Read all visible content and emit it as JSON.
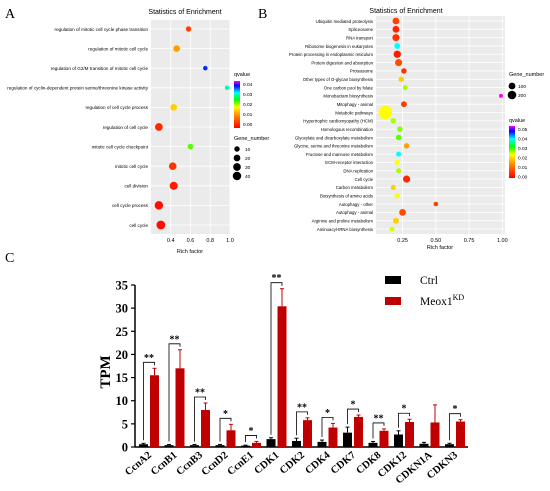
{
  "panels": {
    "a": "A",
    "b": "B",
    "c": "C"
  },
  "colors": {
    "ctrl": "#000000",
    "meox": "#c00000",
    "grad": [
      "#ff0000",
      "#ff8000",
      "#ffff00",
      "#00ff00",
      "#00ffff",
      "#0000ff",
      "#ff00ff"
    ]
  },
  "chart_data": [
    {
      "type": "scatter",
      "title": "Statistics of Enrichment",
      "xlabel": "Rich factor",
      "ylabel": "",
      "xlim": [
        0.2,
        1.0
      ],
      "xticks": [
        "0.4",
        "0.6",
        "0.8",
        "1.0"
      ],
      "xtick_values": [
        0.4,
        0.6,
        0.8,
        1.0
      ],
      "categories": [
        "regulation of mitotic cell cycle phase transition",
        "regulation of mitotic cell cycle",
        "regulation of G2/M transition of mitotic cell cycle",
        "regulation of cyclin-dependent protein serine/threonine kinase activity",
        "regulation of cell cycle process",
        "regulation of cell cycle",
        "mitotic cell cycle checkpoint",
        "mitotic cell cycle",
        "cell division",
        "cell cycle process",
        "cell cycle"
      ],
      "rich_factor": [
        0.58,
        0.46,
        0.75,
        0.97,
        0.43,
        0.28,
        0.6,
        0.42,
        0.43,
        0.28,
        0.3
      ],
      "qvalue": [
        0.005,
        0.012,
        0.035,
        0.028,
        0.015,
        0.003,
        0.022,
        0.004,
        0.002,
        0.001,
        0.001
      ],
      "gene_number": [
        10,
        20,
        5,
        5,
        20,
        30,
        12,
        30,
        35,
        40,
        45
      ],
      "legend_color": {
        "title": "qvalue",
        "ticks": [
          "0.04",
          "0.03",
          "0.02",
          "0.01",
          "0.00"
        ]
      },
      "legend_size": {
        "title": "Gene_number",
        "ticks": [
          "10",
          "20",
          "30",
          "40"
        ]
      }
    },
    {
      "type": "scatter",
      "title": "Statistics of Enrichment",
      "xlabel": "Rich factor",
      "ylabel": "",
      "xlim": [
        0.05,
        1.02
      ],
      "xticks": [
        "0.25",
        "0.50",
        "0.75",
        "1.00"
      ],
      "xtick_values": [
        0.25,
        0.5,
        0.75,
        1.0
      ],
      "categories": [
        "Ubiquitin mediated proteolysis",
        "Spliceosome",
        "RNA transport",
        "Ribosome biogenesis in eukaryotes",
        "Protein processing in endoplasmic reticulum",
        "Protein digestion and absorption",
        "Proteasome",
        "Other types of O-glycan biosynthesis",
        "One carbon pool by folate",
        "Monobactam biosynthesis",
        "Mitophagy - animal",
        "Metabolic pathways",
        "Hypertrophic cardiomyopathy (HCM)",
        "Homologous recombination",
        "Glyoxylate and dicarboxylate metabolism",
        "Glycine, serine and threonine metabolism",
        "Fructose and mannose metabolism",
        "ECM-receptor interaction",
        "DNA replication",
        "Cell cycle",
        "Carbon metabolism",
        "Biosynthesis of amino acids",
        "Autophagy - other",
        "Autophagy - animal",
        "Arginine and proline metabolism",
        "Aminoacyl-tRNA biosynthesis"
      ],
      "rich_factor": [
        0.2,
        0.2,
        0.2,
        0.21,
        0.21,
        0.22,
        0.26,
        0.24,
        0.27,
        0.99,
        0.26,
        0.12,
        0.18,
        0.23,
        0.22,
        0.28,
        0.22,
        0.21,
        0.22,
        0.28,
        0.18,
        0.21,
        0.5,
        0.25,
        0.2,
        0.17
      ],
      "qvalue": [
        0.005,
        0.003,
        0.004,
        0.03,
        0.002,
        0.006,
        0.004,
        0.015,
        0.02,
        0.04,
        0.005,
        0.018,
        0.02,
        0.021,
        0.022,
        0.012,
        0.03,
        0.018,
        0.02,
        0.003,
        0.015,
        0.018,
        0.005,
        0.006,
        0.015,
        0.019
      ],
      "gene_number": [
        40,
        40,
        45,
        25,
        50,
        45,
        20,
        20,
        15,
        5,
        25,
        250,
        20,
        20,
        20,
        18,
        15,
        15,
        15,
        45,
        15,
        20,
        10,
        40,
        25,
        15
      ],
      "legend_size": {
        "title": "Gene_number",
        "ticks": [
          "100",
          "200"
        ]
      },
      "legend_color": {
        "title": "qvalue",
        "ticks": [
          "0.05",
          "0.04",
          "0.03",
          "0.02",
          "0.01",
          "0.00"
        ]
      }
    },
    {
      "type": "bar",
      "title": "",
      "xlabel": "",
      "ylabel": "TPM",
      "ylim": [
        0,
        35
      ],
      "yticks": [
        "0",
        "5",
        "10",
        "15",
        "20",
        "25",
        "30",
        "35"
      ],
      "ytick_values": [
        0,
        5,
        10,
        15,
        20,
        25,
        30,
        35
      ],
      "categories": [
        "CcnA2",
        "CcnB1",
        "CcnB3",
        "CcnD2",
        "CcnE1",
        "CDK1",
        "CDK2",
        "CDK4",
        "CDK7",
        "CDK8",
        "CDK12",
        "CDKN1A",
        "CDKN3"
      ],
      "series": [
        {
          "name": "Ctrl",
          "values": [
            0.6,
            0.4,
            0.4,
            0.4,
            0.3,
            1.7,
            1.3,
            1.1,
            3.1,
            0.9,
            2.7,
            0.7,
            0.6
          ],
          "errors": [
            0.2,
            0.15,
            0.15,
            0.15,
            0.1,
            0.3,
            0.6,
            0.4,
            1.2,
            0.3,
            0.8,
            0.3,
            0.2
          ]
        },
        {
          "name": "Meox1",
          "name_superscript": "KD",
          "values": [
            15.5,
            17.0,
            8.0,
            3.6,
            0.9,
            30.4,
            5.8,
            4.2,
            6.5,
            3.5,
            5.4,
            5.3,
            5.5
          ],
          "errors": [
            1.5,
            4.0,
            1.5,
            1.3,
            0.3,
            3.8,
            0.5,
            0.9,
            0.4,
            0.4,
            0.6,
            3.8,
            0.4
          ]
        }
      ],
      "significance": [
        "**",
        "**",
        "**",
        "*",
        "*",
        "**",
        "**",
        "*",
        "*",
        "**",
        "*",
        "",
        "*"
      ]
    }
  ]
}
